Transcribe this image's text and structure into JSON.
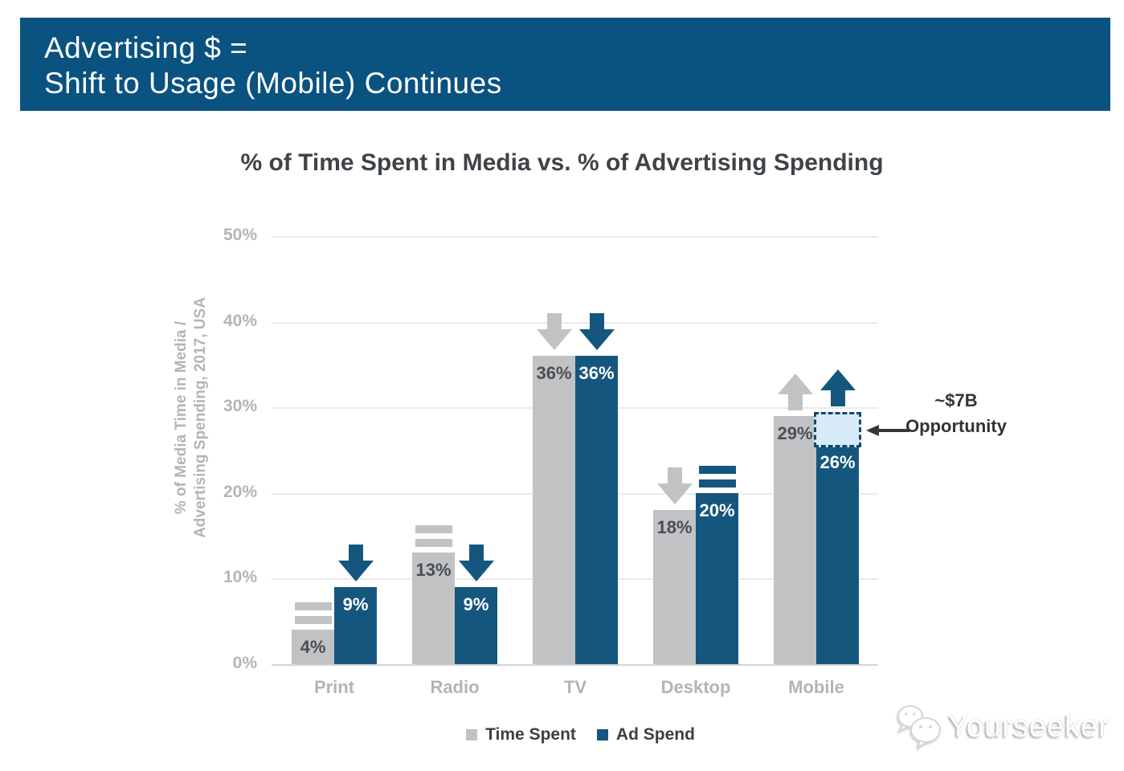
{
  "header": {
    "line1": "Advertising $ =",
    "line2": "Shift to Usage (Mobile) Continues",
    "background_color": "#0a5280"
  },
  "chart_data": {
    "type": "bar",
    "title": "% of Time Spent in Media vs. % of Advertising Spending",
    "ylabel_lines": [
      "% of Media Time in Media /",
      "Advertising Spending, 2017, USA"
    ],
    "categories": [
      "Print",
      "Radio",
      "TV",
      "Desktop",
      "Mobile"
    ],
    "series": [
      {
        "name": "Time Spent",
        "color": "#c1c2c4",
        "values": [
          4,
          13,
          36,
          18,
          29
        ],
        "labels": [
          "4%",
          "13%",
          "36%",
          "18%",
          "29%"
        ],
        "indicators": [
          "flat",
          "flat",
          "down",
          "down",
          "up"
        ]
      },
      {
        "name": "Ad Spend",
        "color": "#15567e",
        "values": [
          9,
          9,
          36,
          20,
          26
        ],
        "labels": [
          "9%",
          "9%",
          "36%",
          "20%",
          "26%"
        ],
        "indicators": [
          "down",
          "down",
          "down",
          "flat",
          "up"
        ]
      }
    ],
    "yticks": [
      "0%",
      "10%",
      "20%",
      "30%",
      "40%",
      "50%"
    ],
    "ylim": [
      0,
      50
    ],
    "grid": true,
    "legend_position": "bottom",
    "annotation": {
      "line1": "~$7B",
      "line2": "Opportunity"
    },
    "opportunity_box": {
      "category": "Mobile",
      "series": "Ad Spend",
      "from": 26,
      "to": 29,
      "fill": "#d7ebf8",
      "border": "#12486e"
    }
  },
  "legend": [
    {
      "label": "Time Spent",
      "color": "#c1c2c4"
    },
    {
      "label": "Ad Spend",
      "color": "#15567e"
    }
  ],
  "watermark": {
    "text": "Yourseeker",
    "icon": "wechat-chat-bubbles"
  }
}
